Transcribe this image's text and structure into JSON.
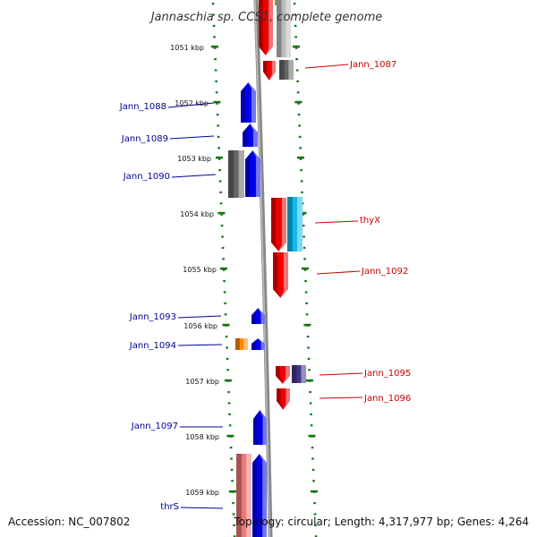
{
  "title": "Jannaschia sp. CCS1, complete genome",
  "footer": {
    "accession": "Accession: NC_007802",
    "topology": "Topology: circular; Length: 4,317,977 bp; Genes: 4,264"
  },
  "kbp_labels": [
    "1051 kbp",
    "1052 kbp",
    "1053 kbp",
    "1054 kbp",
    "1055 kbp",
    "1056 kbp",
    "1057 kbp",
    "1058 kbp",
    "1059 kbp"
  ],
  "gene_labels_left": [
    "Jann_1088",
    "Jann_1089",
    "Jann_1090",
    "Jann_1093",
    "Jann_1094",
    "Jann_1097",
    "thrS"
  ],
  "gene_labels_right": [
    "Jann_1087",
    "thyX",
    "Jann_1092",
    "Jann_1095",
    "Jann_1096"
  ],
  "colors": {
    "forward": "#0000ee",
    "reverse": "#ee0000",
    "grey": "#666666",
    "light_grey": "#bbbbbb",
    "cyan": "#11bbee",
    "orange": "#ff8800",
    "pink": "#ee7777",
    "navy": "#443388",
    "lime": "#99ee33",
    "tick_green": "#117711",
    "left_label": "#000099",
    "right_label": "#cc0000"
  }
}
